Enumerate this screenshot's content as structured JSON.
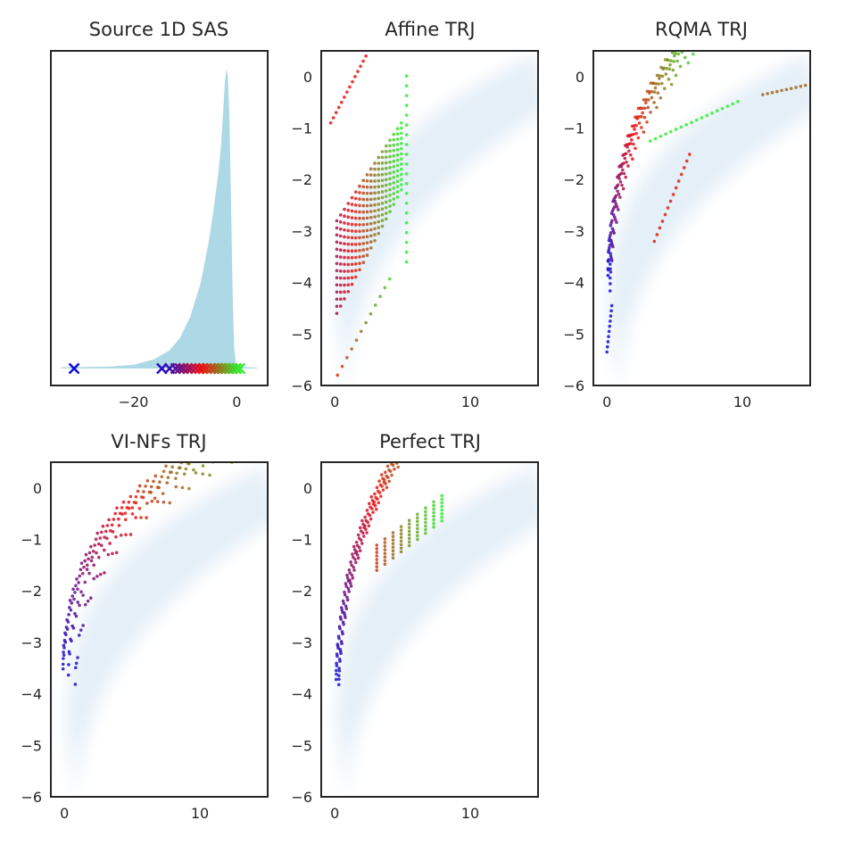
{
  "chart_data": [
    {
      "type": "area",
      "title": "Source 1D SAS",
      "xlim": [
        -36,
        6
      ],
      "ylim": [
        0,
        1
      ],
      "xticks": [
        -20,
        0
      ],
      "yticks": [],
      "grid": false,
      "density_points": [
        [
          -34,
          0.004
        ],
        [
          -25,
          0.006
        ],
        [
          -20,
          0.012
        ],
        [
          -16,
          0.03
        ],
        [
          -13,
          0.06
        ],
        [
          -11,
          0.1
        ],
        [
          -9,
          0.17
        ],
        [
          -7,
          0.28
        ],
        [
          -5.5,
          0.41
        ],
        [
          -4.5,
          0.52
        ],
        [
          -3.5,
          0.65
        ],
        [
          -3,
          0.74
        ],
        [
          -2.6,
          0.85
        ],
        [
          -2.3,
          0.94
        ],
        [
          -2.0,
          0.985
        ],
        [
          -1.7,
          0.96
        ],
        [
          -1.4,
          0.82
        ],
        [
          -1.1,
          0.55
        ],
        [
          -0.8,
          0.25
        ],
        [
          -0.5,
          0.07
        ],
        [
          -0.2,
          0.02
        ],
        [
          0.5,
          0.006
        ],
        [
          4,
          0.003
        ]
      ],
      "markers": [
        -31.5,
        -14.5,
        -13.0,
        -11.8,
        -11.0,
        -10.3,
        -9.5,
        -8.8,
        -8.0,
        -7.2,
        -6.5,
        -5.8,
        -5.0,
        -4.3,
        -3.6,
        -2.9,
        -2.2,
        -1.5,
        -0.8,
        -0.1,
        0.6
      ]
    },
    {
      "type": "scatter",
      "title": "Affine TRJ",
      "xlim": [
        -1,
        15
      ],
      "ylim": [
        -6,
        0.5
      ],
      "xticks": [
        0,
        10
      ],
      "yticks": [
        0,
        -1,
        -2,
        -3,
        -4,
        -5,
        -6
      ],
      "grid": false
    },
    {
      "type": "scatter",
      "title": "RQMA TRJ",
      "xlim": [
        -1,
        15
      ],
      "ylim": [
        -6,
        0.5
      ],
      "xticks": [
        0,
        10
      ],
      "yticks": [
        0,
        -1,
        -2,
        -3,
        -4,
        -5,
        -6
      ],
      "grid": false
    },
    {
      "type": "scatter",
      "title": "VI-NFs TRJ",
      "xlim": [
        -1,
        15
      ],
      "ylim": [
        -6,
        0.5
      ],
      "xticks": [
        0,
        10
      ],
      "yticks": [
        0,
        -1,
        -2,
        -3,
        -4,
        -5,
        -6
      ],
      "grid": false
    },
    {
      "type": "scatter",
      "title": "Perfect TRJ",
      "xlim": [
        -1,
        15
      ],
      "ylim": [
        -6,
        0.5
      ],
      "xticks": [
        0,
        10
      ],
      "yticks": [
        0,
        -1,
        -2,
        -3,
        -4,
        -5,
        -6
      ],
      "grid": false
    }
  ],
  "colors": {
    "density_fill": "#add8e6",
    "background_density": "#dce9f5",
    "marker_start": "#1010d8",
    "marker_mid": "#ee1010",
    "marker_end": "#30ee30",
    "frame": "#262626"
  }
}
